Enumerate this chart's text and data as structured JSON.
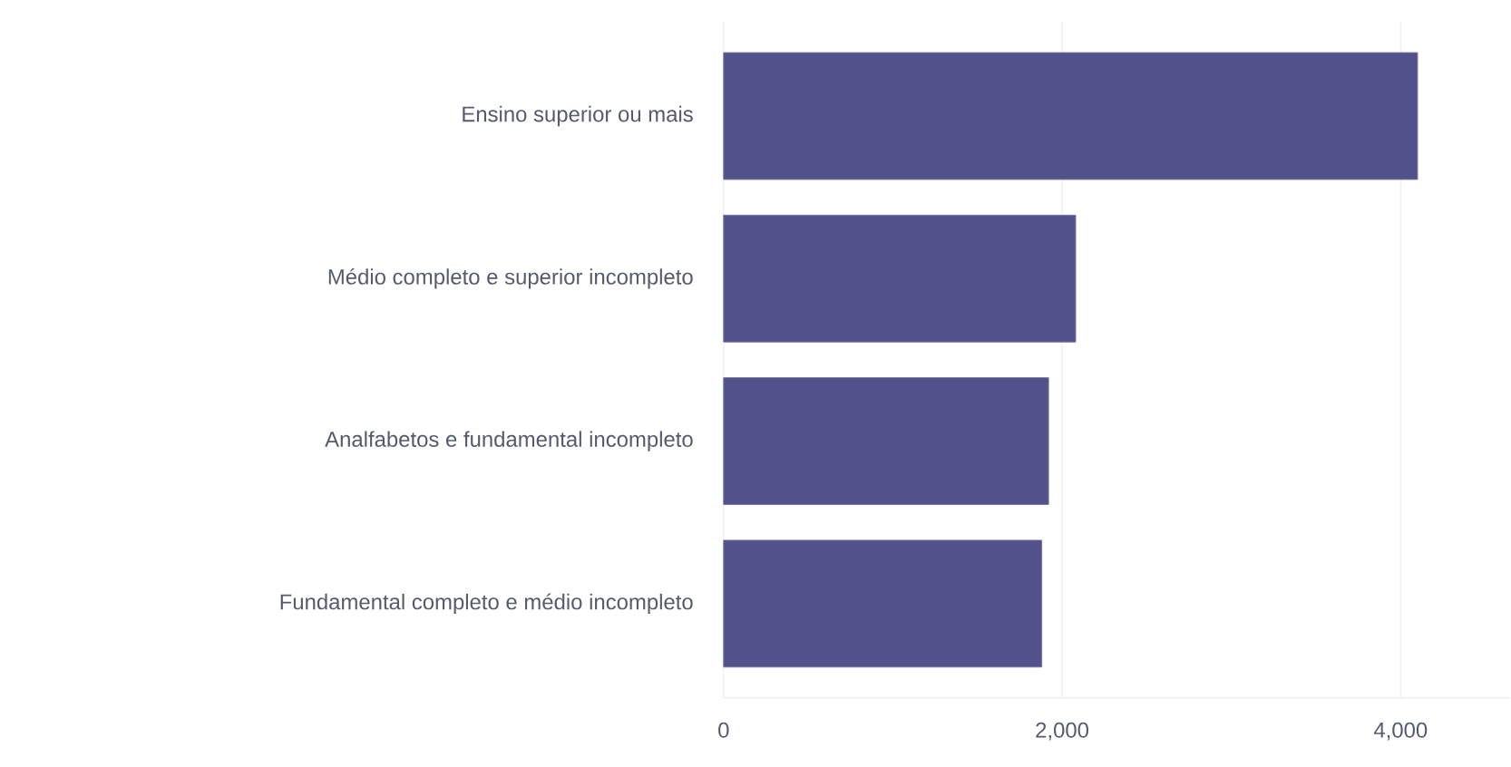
{
  "chart_data": {
    "type": "bar",
    "orientation": "horizontal",
    "categories": [
      "Ensino superior ou mais",
      "Médio completo e superior incompleto",
      "Analfabetos e fundamental incompleto",
      "Fundamental completo e médio incompleto"
    ],
    "values": [
      4100,
      2080,
      1920,
      1880
    ],
    "color": "#525189",
    "xlim": [
      0,
      4650
    ],
    "xticks": [
      0,
      {
        "value": 2000,
        "label": "2,000"
      },
      {
        "value": 4000,
        "label": "4,000"
      }
    ],
    "grid": "x"
  }
}
